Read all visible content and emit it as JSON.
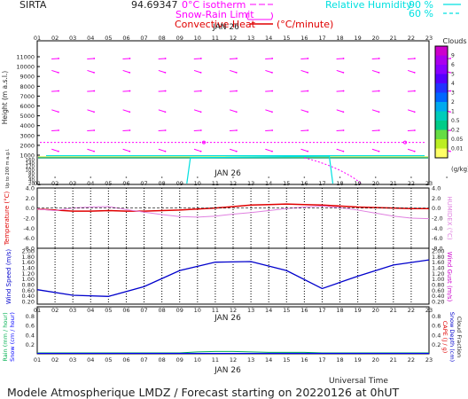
{
  "header": {
    "site": "SIRTA",
    "coords": "94.69347",
    "legend_isotherm": "0°C isotherm",
    "legend_snow_rain": "Snow-Rain Limit",
    "legend_convective": "Convective Heat",
    "legend_unit": "(°C/minute)",
    "legend_rh": "Relative Humidity",
    "rh_90": "90 %",
    "rh_60": "60 %"
  },
  "axis": {
    "hours": [
      "01",
      "02",
      "03",
      "04",
      "05",
      "06",
      "07",
      "08",
      "09",
      "10",
      "11",
      "12",
      "13",
      "14",
      "15",
      "16",
      "17",
      "18",
      "19",
      "20",
      "21",
      "22",
      "23"
    ],
    "date": "JAN 26",
    "universal_time": "Universal Time"
  },
  "footer": {
    "text": "Modele Atmospherique LMDZ / Forecast starting on 20220126 at 0hUT"
  },
  "colors": {
    "wind_arrows": "#ff00ff",
    "isotherm": "#ff00ff",
    "rh": "#00e0e0",
    "temperature": "#e00000",
    "humidex": "#e080e0",
    "wind_speed": "#0000cc",
    "rain": "#00b050",
    "snow": "#0000ff"
  },
  "chart_data": [
    {
      "type": "heatmap",
      "name_printed": "Clouds",
      "ylabel": "Height (m a.s.l.)",
      "ylabel_lower": "Up to 200 m a.g.l.",
      "y_ticks_upper": [
        1000,
        2000,
        3000,
        4000,
        5000,
        6000,
        7000,
        8000,
        9000,
        10000,
        11000
      ],
      "y_ticks_lower": [
        20,
        40,
        60,
        80,
        100,
        120,
        140,
        160
      ],
      "colorbar": {
        "title": "Clouds",
        "unit": "(g/kg)",
        "labels": [
          "9",
          "6",
          "5",
          "4",
          "3",
          "2",
          "1",
          "0.5",
          "0.2",
          "0.05",
          "0.01"
        ],
        "colors": [
          "#cc00cc",
          "#aa00ee",
          "#8800ff",
          "#5500ff",
          "#2233ff",
          "#0066ff",
          "#00aaee",
          "#00ccbb",
          "#00cc88",
          "#66dd44",
          "#bbee22",
          "#ffff66"
        ]
      },
      "isotherm_height_m": 2300,
      "cloud_layer_m": [
        700,
        900
      ]
    },
    {
      "type": "line",
      "xlabel": "Universal Time",
      "ylabel": "Temperature (°C)",
      "ylabel_right": "HUMIDEX (°C)",
      "y_ticks": [
        "4.0",
        "2.0",
        "0.0",
        "-2.0",
        "-4.0",
        "-6.0",
        "-8.0"
      ],
      "ylim": [
        -8,
        4
      ],
      "x": [
        1,
        2,
        3,
        4,
        5,
        6,
        7,
        8,
        9,
        10,
        11,
        12,
        13,
        14,
        15,
        16,
        17,
        18,
        19,
        20,
        21,
        22,
        23
      ],
      "series": [
        {
          "name": "Temperature",
          "values": [
            -0.2,
            -0.4,
            -0.6,
            -0.6,
            -0.5,
            -0.6,
            -0.6,
            -0.5,
            -0.4,
            -0.2,
            0.0,
            0.3,
            0.6,
            0.7,
            0.8,
            0.7,
            0.6,
            0.4,
            0.2,
            0.1,
            0.0,
            -0.1,
            -0.1
          ]
        },
        {
          "name": "HUMIDEX",
          "values": [
            -0.2,
            -0.5,
            0.0,
            0.2,
            0.3,
            -0.3,
            -0.8,
            -1.3,
            -1.7,
            -1.8,
            -1.6,
            -1.2,
            -0.9,
            -0.5,
            -0.1,
            0.2,
            0.4,
            0.1,
            -0.4,
            -1.0,
            -1.6,
            -2.0,
            -2.1
          ]
        }
      ]
    },
    {
      "type": "line",
      "ylabel": "Wind Speed (m/s)",
      "ylabel_right": "Wind Gust (m/s)",
      "y_ticks": [
        "2.00",
        "1.80",
        "1.60",
        "1.40",
        "1.20",
        "1.00",
        "0.80",
        "0.60",
        "0.40",
        "0.20"
      ],
      "ylim": [
        0.2,
        2.0
      ],
      "x": [
        1,
        3,
        5,
        7,
        9,
        11,
        13,
        15,
        17,
        19,
        21,
        23
      ],
      "series": [
        {
          "name": "Wind Speed",
          "values": [
            0.62,
            0.42,
            0.38,
            0.73,
            1.3,
            1.6,
            1.62,
            1.3,
            0.66,
            1.1,
            1.5,
            1.68
          ]
        }
      ]
    },
    {
      "type": "line",
      "ylabel": "Rain (mm / hour)",
      "ylabel2": "Snow (cm / hour)",
      "ylabel_right": "CAPE (J / g)",
      "ylabel_right2": "Snow Depth (cm)",
      "ylabel_right3": "Cloud Fraction",
      "y_ticks": [
        "0.8",
        "0.6",
        "0.4",
        "0.2"
      ],
      "ylim": [
        0,
        1.0
      ],
      "x": [
        1,
        2,
        3,
        4,
        5,
        6,
        7,
        8,
        9,
        10,
        11,
        12,
        13,
        14,
        15,
        16,
        17,
        18,
        19,
        20,
        21,
        22,
        23
      ],
      "series": [
        {
          "name": "Rain",
          "values": [
            0.02,
            0.02,
            0.02,
            0.02,
            0.02,
            0.02,
            0.02,
            0.02,
            0.02,
            0.04,
            0.05,
            0.05,
            0.04,
            0.03,
            0.03,
            0.03,
            0.02,
            0.02,
            0.02,
            0.02,
            0.02,
            0.02,
            0.02
          ]
        },
        {
          "name": "Snow",
          "values": [
            0.01,
            0.01,
            0.01,
            0.01,
            0.01,
            0.01,
            0.01,
            0.01,
            0.01,
            0.01,
            0.01,
            0.01,
            0.01,
            0.01,
            0.01,
            0.01,
            0.01,
            0.01,
            0.01,
            0.01,
            0.01,
            0.01,
            0.01
          ]
        }
      ]
    }
  ]
}
